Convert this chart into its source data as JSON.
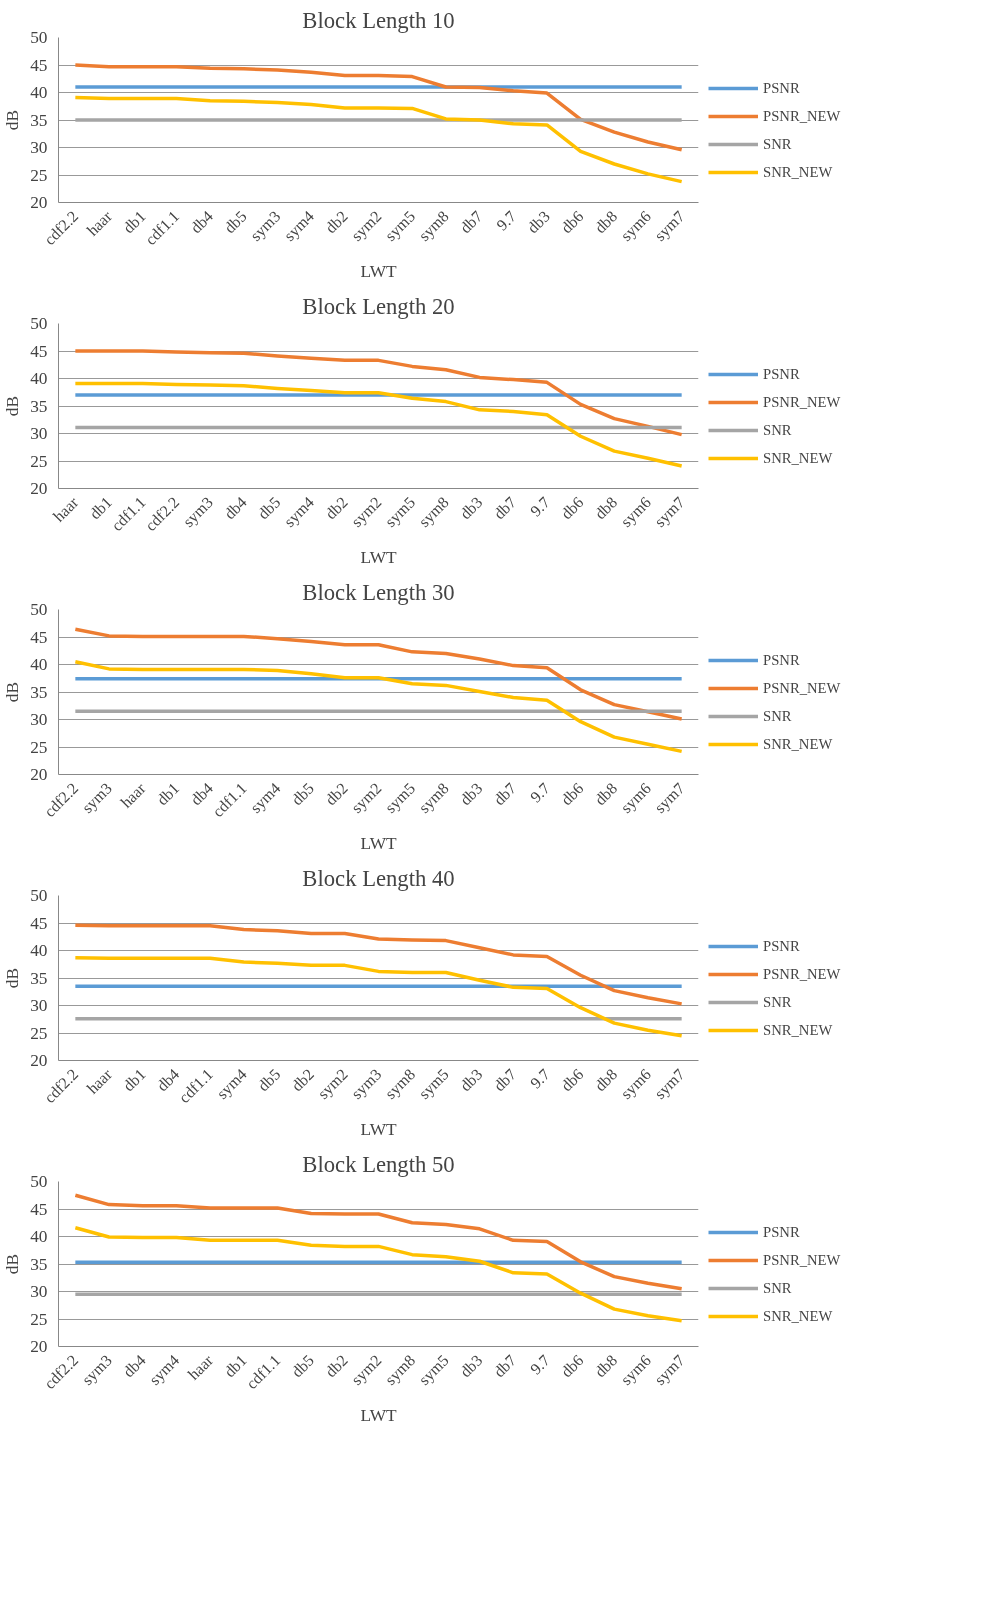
{
  "chart_data": [
    {
      "type": "line",
      "title": "Block Length 10",
      "xlabel": "LWT",
      "ylabel": "dB",
      "ylim": [
        20,
        50
      ],
      "yticks": [
        20,
        25,
        30,
        35,
        40,
        45,
        50
      ],
      "grid": "y",
      "legend": "right",
      "marker": "none",
      "categories": [
        "cdf2.2",
        "haar",
        "db1",
        "cdf1.1",
        "db4",
        "db5",
        "sym3",
        "sym4",
        "db2",
        "sym2",
        "sym5",
        "sym8",
        "db7",
        "9.7",
        "db3",
        "db6",
        "db8",
        "sym6",
        "sym7"
      ],
      "series": [
        {
          "name": "PSNR",
          "color": "#5b9bd5",
          "values": [
            41,
            41,
            41,
            41,
            41,
            41,
            41,
            41,
            41,
            41,
            41,
            41,
            41,
            41,
            41,
            41,
            41,
            41,
            41
          ]
        },
        {
          "name": "PSNR_NEW",
          "color": "#ed7d31",
          "values": [
            45,
            44.7,
            44.7,
            44.7,
            44.4,
            44.3,
            44.1,
            43.7,
            43.1,
            43.1,
            42.9,
            41,
            40.9,
            40.3,
            39.9,
            35.1,
            32.8,
            31,
            29.6
          ]
        },
        {
          "name": "SNR",
          "color": "#a5a5a5",
          "values": [
            35,
            35,
            35,
            35,
            35,
            35,
            35,
            35,
            35,
            35,
            35,
            35,
            35,
            35,
            35,
            35,
            35,
            35,
            35
          ]
        },
        {
          "name": "SNR_NEW",
          "color": "#ffc000",
          "values": [
            39.1,
            38.9,
            38.9,
            38.9,
            38.5,
            38.4,
            38.2,
            37.8,
            37.2,
            37.2,
            37.1,
            35.2,
            35.0,
            34.3,
            34.1,
            29.3,
            27,
            25.2,
            23.8
          ]
        }
      ]
    },
    {
      "type": "line",
      "title": "Block Length 20",
      "xlabel": "LWT",
      "ylabel": "dB",
      "ylim": [
        20,
        50
      ],
      "yticks": [
        20,
        25,
        30,
        35,
        40,
        45,
        50
      ],
      "grid": "y",
      "legend": "right",
      "marker": "none",
      "categories": [
        "haar",
        "db1",
        "cdf1.1",
        "cdf2.2",
        "sym3",
        "db4",
        "db5",
        "sym4",
        "db2",
        "sym2",
        "sym5",
        "sym8",
        "db3",
        "db7",
        "9.7",
        "db6",
        "db8",
        "sym6",
        "sym7"
      ],
      "series": [
        {
          "name": "PSNR",
          "color": "#5b9bd5",
          "values": [
            37,
            37,
            37,
            37,
            37,
            37,
            37,
            37,
            37,
            37,
            37,
            37,
            37,
            37,
            37,
            37,
            37,
            37,
            37
          ]
        },
        {
          "name": "PSNR_NEW",
          "color": "#ed7d31",
          "values": [
            45,
            45,
            45,
            44.8,
            44.7,
            44.6,
            44.1,
            43.7,
            43.3,
            43.3,
            42.2,
            41.6,
            40.2,
            39.8,
            39.3,
            35.3,
            32.7,
            31.3,
            29.8
          ]
        },
        {
          "name": "SNR",
          "color": "#a5a5a5",
          "values": [
            31.1,
            31.1,
            31.1,
            31.1,
            31.1,
            31.1,
            31.1,
            31.1,
            31.1,
            31.1,
            31.1,
            31.1,
            31.1,
            31.1,
            31.1,
            31.1,
            31.1,
            31.1,
            31.1
          ]
        },
        {
          "name": "SNR_NEW",
          "color": "#ffc000",
          "values": [
            39.1,
            39.1,
            39.1,
            38.9,
            38.8,
            38.7,
            38.2,
            37.8,
            37.4,
            37.4,
            36.4,
            35.8,
            34.3,
            34.0,
            33.4,
            29.5,
            26.8,
            25.5,
            24.1
          ]
        }
      ]
    },
    {
      "type": "line",
      "title": "Block Length 30",
      "xlabel": "LWT",
      "ylabel": "dB",
      "ylim": [
        20,
        50
      ],
      "yticks": [
        20,
        25,
        30,
        35,
        40,
        45,
        50
      ],
      "grid": "y",
      "legend": "right",
      "marker": "none",
      "categories": [
        "cdf2.2",
        "sym3",
        "haar",
        "db1",
        "db4",
        "cdf1.1",
        "sym4",
        "db5",
        "db2",
        "sym2",
        "sym5",
        "sym8",
        "db3",
        "db7",
        "9.7",
        "db6",
        "db8",
        "sym6",
        "sym7"
      ],
      "series": [
        {
          "name": "PSNR",
          "color": "#5b9bd5",
          "values": [
            37.4,
            37.4,
            37.4,
            37.4,
            37.4,
            37.4,
            37.4,
            37.4,
            37.4,
            37.4,
            37.4,
            37.4,
            37.4,
            37.4,
            37.4,
            37.4,
            37.4,
            37.4,
            37.4
          ]
        },
        {
          "name": "PSNR_NEW",
          "color": "#ed7d31",
          "values": [
            46.4,
            45.2,
            45.1,
            45.1,
            45.1,
            45.1,
            44.7,
            44.2,
            43.6,
            43.6,
            42.3,
            42.0,
            41.0,
            39.8,
            39.4,
            35.4,
            32.7,
            31.4,
            30.1
          ]
        },
        {
          "name": "SNR",
          "color": "#a5a5a5",
          "values": [
            31.5,
            31.5,
            31.5,
            31.5,
            31.5,
            31.5,
            31.5,
            31.5,
            31.5,
            31.5,
            31.5,
            31.5,
            31.5,
            31.5,
            31.5,
            31.5,
            31.5,
            31.5,
            31.5
          ]
        },
        {
          "name": "SNR_NEW",
          "color": "#ffc000",
          "values": [
            40.5,
            39.2,
            39.1,
            39.1,
            39.1,
            39.1,
            38.9,
            38.3,
            37.6,
            37.6,
            36.5,
            36.2,
            35.1,
            34.0,
            33.5,
            29.6,
            26.8,
            25.5,
            24.2
          ]
        }
      ]
    },
    {
      "type": "line",
      "title": "Block Length 40",
      "xlabel": "LWT",
      "ylabel": "dB",
      "ylim": [
        20,
        50
      ],
      "yticks": [
        20,
        25,
        30,
        35,
        40,
        45,
        50
      ],
      "grid": "y",
      "legend": "right",
      "marker": "none",
      "categories": [
        "cdf2.2",
        "haar",
        "db1",
        "db4",
        "cdf1.1",
        "sym4",
        "db5",
        "db2",
        "sym2",
        "sym3",
        "sym8",
        "sym5",
        "db3",
        "db7",
        "9.7",
        "db6",
        "db8",
        "sym6",
        "sym7"
      ],
      "series": [
        {
          "name": "PSNR",
          "color": "#5b9bd5",
          "values": [
            33.5,
            33.5,
            33.5,
            33.5,
            33.5,
            33.5,
            33.5,
            33.5,
            33.5,
            33.5,
            33.5,
            33.5,
            33.5,
            33.5,
            33.5,
            33.5,
            33.5,
            33.5,
            33.5
          ]
        },
        {
          "name": "PSNR_NEW",
          "color": "#ed7d31",
          "values": [
            44.6,
            44.5,
            44.5,
            44.5,
            44.5,
            43.8,
            43.6,
            43.1,
            43.1,
            42.1,
            41.9,
            41.8,
            40.5,
            39.2,
            38.9,
            35.5,
            32.7,
            31.4,
            30.3
          ]
        },
        {
          "name": "SNR",
          "color": "#a5a5a5",
          "values": [
            27.6,
            27.6,
            27.6,
            27.6,
            27.6,
            27.6,
            27.6,
            27.6,
            27.6,
            27.6,
            27.6,
            27.6,
            27.6,
            27.6,
            27.6,
            27.6,
            27.6,
            27.6,
            27.6
          ]
        },
        {
          "name": "SNR_NEW",
          "color": "#ffc000",
          "values": [
            38.7,
            38.6,
            38.6,
            38.6,
            38.6,
            37.9,
            37.7,
            37.3,
            37.3,
            36.2,
            36.0,
            36.0,
            34.6,
            33.3,
            33.1,
            29.6,
            26.8,
            25.5,
            24.5
          ]
        }
      ]
    },
    {
      "type": "line",
      "title": "Block Length 50",
      "xlabel": "LWT",
      "ylabel": "dB",
      "ylim": [
        20,
        50
      ],
      "yticks": [
        20,
        25,
        30,
        35,
        40,
        45,
        50
      ],
      "grid": "y",
      "legend": "right",
      "marker": "none",
      "categories": [
        "cdf2.2",
        "sym3",
        "db4",
        "sym4",
        "haar",
        "db1",
        "cdf1.1",
        "db5",
        "db2",
        "sym2",
        "sym8",
        "sym5",
        "db3",
        "db7",
        "9.7",
        "db6",
        "db8",
        "sym6",
        "sym7"
      ],
      "series": [
        {
          "name": "PSNR",
          "color": "#5b9bd5",
          "values": [
            35.3,
            35.3,
            35.3,
            35.3,
            35.3,
            35.3,
            35.3,
            35.3,
            35.3,
            35.3,
            35.3,
            35.3,
            35.3,
            35.3,
            35.3,
            35.3,
            35.3,
            35.3,
            35.3
          ]
        },
        {
          "name": "PSNR_NEW",
          "color": "#ed7d31",
          "values": [
            47.5,
            45.8,
            45.6,
            45.6,
            45.2,
            45.2,
            45.2,
            44.2,
            44.1,
            44.1,
            42.5,
            42.2,
            41.4,
            39.3,
            39.1,
            35.4,
            32.7,
            31.5,
            30.5
          ]
        },
        {
          "name": "SNR",
          "color": "#a5a5a5",
          "values": [
            29.5,
            29.5,
            29.5,
            29.5,
            29.5,
            29.5,
            29.5,
            29.5,
            29.5,
            29.5,
            29.5,
            29.5,
            29.5,
            29.5,
            29.5,
            29.5,
            29.5,
            29.5,
            29.5
          ]
        },
        {
          "name": "SNR_NEW",
          "color": "#ffc000",
          "values": [
            41.6,
            39.9,
            39.8,
            39.8,
            39.3,
            39.3,
            39.3,
            38.4,
            38.2,
            38.2,
            36.7,
            36.3,
            35.5,
            33.4,
            33.2,
            29.7,
            26.8,
            25.6,
            24.7
          ]
        }
      ]
    }
  ]
}
